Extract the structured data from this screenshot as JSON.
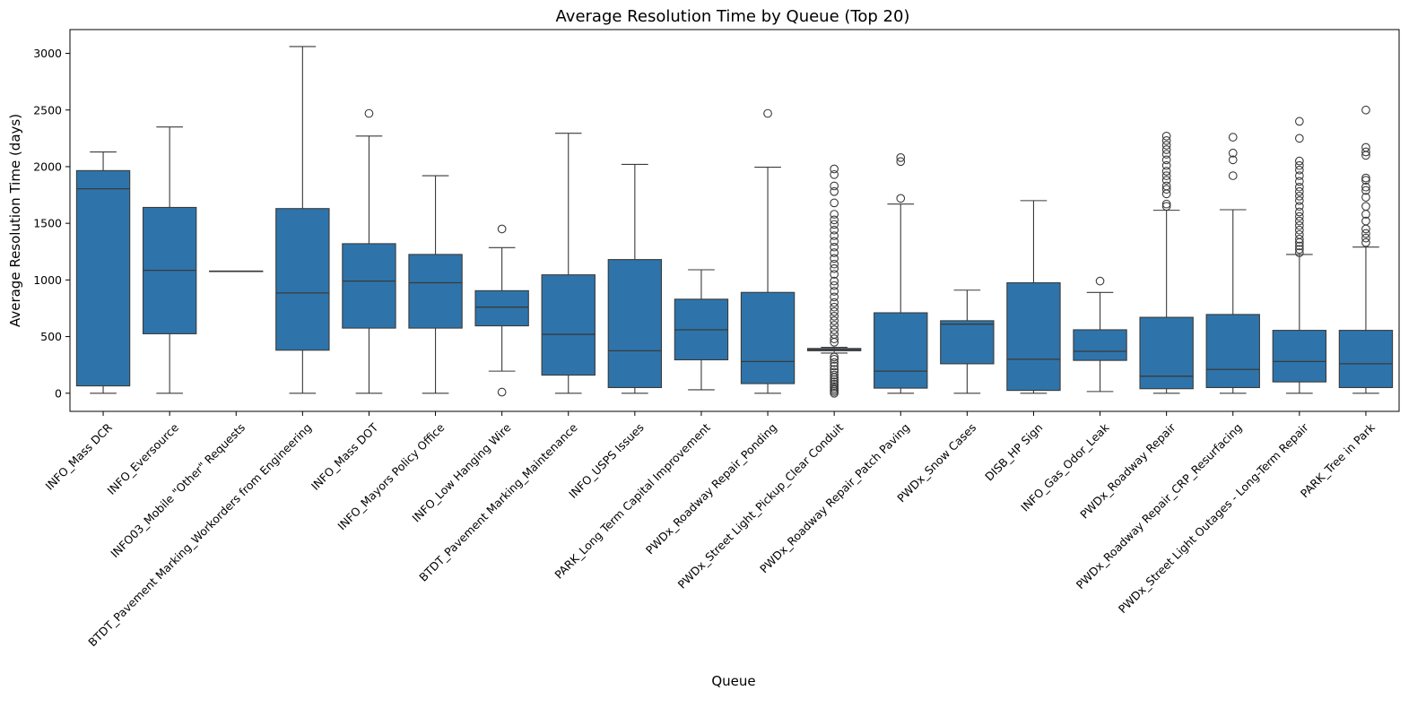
{
  "chart_data": {
    "type": "boxplot",
    "title": "Average Resolution Time by Queue (Top 20)",
    "xlabel": "Queue",
    "ylabel": "Average Resolution Time (days)",
    "ylim": [
      -160,
      3210
    ],
    "yticks": [
      0,
      500,
      1000,
      1500,
      2000,
      2500,
      3000
    ],
    "grid": false,
    "legend": "none",
    "colors": {
      "box": "#2e74aa",
      "line": "#3a3a3a",
      "outlier_edge": "#3a3a3a"
    },
    "categories": [
      "INFO_Mass DCR",
      "INFO_Eversource",
      "INFO03_Mobile \"Other\" Requests",
      "BTDT_Pavement Marking_Workorders from Engineering",
      "INFO_Mass DOT",
      "INFO_Mayors Policy Office",
      "INFO_Low Hanging Wire",
      "BTDT_Pavement Marking_Maintenance",
      "INFO_USPS Issues",
      "PARK_Long Term Capital Improvement",
      "PWDx_Roadway Repair_Ponding",
      "PWDx_Street Light_Pickup_Clear Conduit",
      "PWDx_Roadway Repair_Patch Paving",
      "PWDx_Snow Cases",
      "DISB_HP Sign",
      "INFO_Gas_Odor_Leak",
      "PWDx_Roadway Repair",
      "PWDx_Roadway Repair_CRP_Resurfacing",
      "PWDx_Street Light Outages - Long-Term Repair",
      "PARK_Tree in Park"
    ],
    "boxes": [
      {
        "whisker_low": 0,
        "q1": 65,
        "median": 1805,
        "q3": 1965,
        "whisker_high": 2130,
        "outliers": []
      },
      {
        "whisker_low": 0,
        "q1": 525,
        "median": 1085,
        "q3": 1640,
        "whisker_high": 2350,
        "outliers": []
      },
      {
        "whisker_low": 1078,
        "q1": 1078,
        "median": 1078,
        "q3": 1078,
        "whisker_high": 1078,
        "outliers": []
      },
      {
        "whisker_low": 0,
        "q1": 380,
        "median": 885,
        "q3": 1630,
        "whisker_high": 3060,
        "outliers": []
      },
      {
        "whisker_low": 0,
        "q1": 575,
        "median": 990,
        "q3": 1320,
        "whisker_high": 2270,
        "outliers": [
          2470
        ]
      },
      {
        "whisker_low": 0,
        "q1": 575,
        "median": 975,
        "q3": 1225,
        "whisker_high": 1920,
        "outliers": []
      },
      {
        "whisker_low": 195,
        "q1": 595,
        "median": 760,
        "q3": 905,
        "whisker_high": 1285,
        "outliers": [
          10,
          1450
        ]
      },
      {
        "whisker_low": 0,
        "q1": 160,
        "median": 520,
        "q3": 1045,
        "whisker_high": 2295,
        "outliers": []
      },
      {
        "whisker_low": 0,
        "q1": 50,
        "median": 375,
        "q3": 1180,
        "whisker_high": 2020,
        "outliers": []
      },
      {
        "whisker_low": 30,
        "q1": 295,
        "median": 560,
        "q3": 830,
        "whisker_high": 1090,
        "outliers": []
      },
      {
        "whisker_low": 0,
        "q1": 85,
        "median": 280,
        "q3": 890,
        "whisker_high": 1995,
        "outliers": [
          2470
        ]
      },
      {
        "whisker_low": 355,
        "q1": 375,
        "median": 385,
        "q3": 395,
        "whisker_high": 405,
        "outliers": [
          0,
          15,
          30,
          45,
          60,
          80,
          100,
          120,
          140,
          160,
          185,
          210,
          240,
          270,
          300,
          320,
          450,
          480,
          520,
          560,
          600,
          640,
          680,
          720,
          760,
          800,
          850,
          900,
          950,
          990,
          1050,
          1100,
          1140,
          1190,
          1240,
          1290,
          1340,
          1390,
          1440,
          1490,
          1530,
          1580,
          1680,
          1780,
          1830,
          1930,
          1980
        ]
      },
      {
        "whisker_low": 0,
        "q1": 45,
        "median": 195,
        "q3": 710,
        "whisker_high": 1670,
        "outliers": [
          1720,
          2045,
          2080
        ]
      },
      {
        "whisker_low": 0,
        "q1": 260,
        "median": 610,
        "q3": 640,
        "whisker_high": 910,
        "outliers": []
      },
      {
        "whisker_low": 0,
        "q1": 25,
        "median": 300,
        "q3": 975,
        "whisker_high": 1700,
        "outliers": []
      },
      {
        "whisker_low": 15,
        "q1": 290,
        "median": 370,
        "q3": 560,
        "whisker_high": 890,
        "outliers": [
          990
        ]
      },
      {
        "whisker_low": 0,
        "q1": 40,
        "median": 150,
        "q3": 670,
        "whisker_high": 1615,
        "outliers": [
          1650,
          1670,
          1760,
          1800,
          1830,
          1880,
          1920,
          1960,
          2010,
          2060,
          2110,
          2150,
          2190,
          2230,
          2270
        ]
      },
      {
        "whisker_low": 0,
        "q1": 50,
        "median": 210,
        "q3": 695,
        "whisker_high": 1620,
        "outliers": [
          1920,
          2060,
          2120,
          2260
        ]
      },
      {
        "whisker_low": 0,
        "q1": 100,
        "median": 280,
        "q3": 555,
        "whisker_high": 1225,
        "outliers": [
          1240,
          1270,
          1300,
          1330,
          1360,
          1400,
          1440,
          1480,
          1520,
          1560,
          1600,
          1650,
          1700,
          1740,
          1780,
          1820,
          1870,
          1920,
          1970,
          2010,
          2050,
          2250,
          2400
        ]
      },
      {
        "whisker_low": 0,
        "q1": 50,
        "median": 260,
        "q3": 555,
        "whisker_high": 1290,
        "outliers": [
          1330,
          1370,
          1410,
          1450,
          1520,
          1580,
          1650,
          1730,
          1790,
          1820,
          1880,
          1900,
          2100,
          2130,
          2170,
          2500
        ]
      }
    ]
  }
}
